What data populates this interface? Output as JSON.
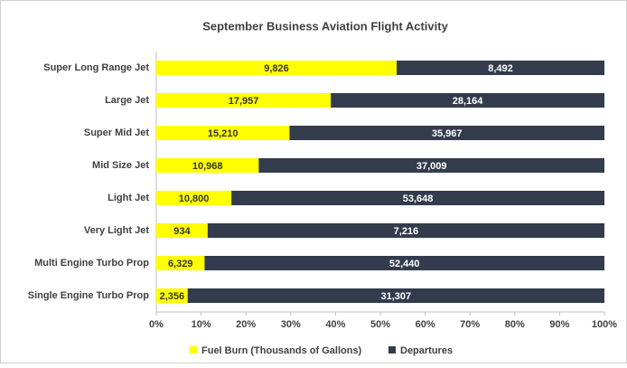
{
  "chart_data": {
    "type": "bar",
    "orientation": "horizontal",
    "stacking": "percent",
    "title": "September Business Aviation Flight Activity",
    "categories": [
      "Super Long Range Jet",
      "Large Jet",
      "Super Mid Jet",
      "Mid Size Jet",
      "Light Jet",
      "Very Light Jet",
      "Multi Engine Turbo Prop",
      "Single Engine Turbo Prop"
    ],
    "series": [
      {
        "name": "Fuel Burn (Thousands of Gallons)",
        "color": "#ffff00",
        "label_color": "#333333",
        "values": [
          9826,
          17957,
          15210,
          10968,
          10800,
          934,
          6329,
          2356
        ],
        "value_labels": [
          "9,826",
          "17,957",
          "15,210",
          "10,968",
          "10,800",
          "934",
          "6,329",
          "2,356"
        ]
      },
      {
        "name": "Departures",
        "color": "#333c4c",
        "label_color": "#ffffff",
        "values": [
          8492,
          28164,
          35967,
          37009,
          53648,
          7216,
          52440,
          31307
        ],
        "value_labels": [
          "8,492",
          "28,164",
          "35,967",
          "37,009",
          "53,648",
          "7,216",
          "52,440",
          "31,307"
        ]
      }
    ],
    "xlim": [
      0,
      100
    ],
    "xticks": [
      {
        "value": 0,
        "label": "0%"
      },
      {
        "value": 10,
        "label": "10%"
      },
      {
        "value": 20,
        "label": "20%"
      },
      {
        "value": 30,
        "label": "30%"
      },
      {
        "value": 40,
        "label": "40%"
      },
      {
        "value": 50,
        "label": "50%"
      },
      {
        "value": 60,
        "label": "60%"
      },
      {
        "value": 70,
        "label": "70%"
      },
      {
        "value": 80,
        "label": "80%"
      },
      {
        "value": 90,
        "label": "90%"
      },
      {
        "value": 100,
        "label": "100%"
      }
    ],
    "legend": "bottom"
  }
}
